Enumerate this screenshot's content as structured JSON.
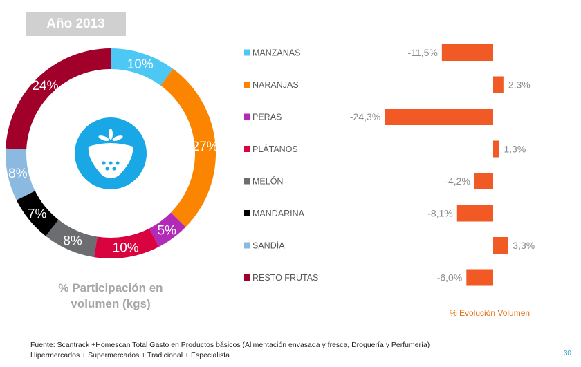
{
  "header": {
    "year_label": "Año 2013"
  },
  "donut_caption_line1": "% Participación en",
  "donut_caption_line2": "volumen (kgs)",
  "bars_caption": "% Evolución  Volumen",
  "source_line1": "Fuente: Scantrack +Homescan Total Gasto en Productos básicos  (Alimentación envasada y fresca, Droguería  y Perfumería)",
  "source_line2": "Hipermercados + Supermercados + Tradicional + Especialista",
  "page_number": "30",
  "center_icon": "strawberry-icon",
  "colors": {
    "bar": "#f15a24",
    "icon_bg": "#1aa7e6"
  },
  "chart_data": [
    {
      "type": "pie",
      "subtype": "donut",
      "title": "% Participación en volumen (kgs)",
      "categories": [
        "MANZANAS",
        "NARANJAS",
        "PERAS",
        "PLÁTANOS",
        "MELÓN",
        "MANDARINA",
        "SANDÍA",
        "RESTO FRUTAS"
      ],
      "values": [
        10,
        27,
        5,
        10,
        8,
        7,
        8,
        24
      ],
      "labels": [
        "10%",
        "27%",
        "5%",
        "10%",
        "8%",
        "7%",
        "8%",
        "24%"
      ],
      "colors": [
        "#4dc8f5",
        "#fb8500",
        "#b12ab8",
        "#d9043f",
        "#6c6d70",
        "#000000",
        "#8cb9e0",
        "#a1002b"
      ]
    },
    {
      "type": "bar",
      "orientation": "horizontal",
      "title": "% Evolución  Volumen",
      "categories": [
        "MANZANAS",
        "NARANJAS",
        "PERAS",
        "PLÁTANOS",
        "MELÓN",
        "MANDARINA",
        "SANDÍA",
        "RESTO FRUTAS"
      ],
      "values": [
        -11.5,
        2.3,
        -24.3,
        1.3,
        -4.2,
        -8.1,
        3.3,
        -6.0
      ],
      "labels": [
        "-11,5%",
        "2,3%",
        "-24,3%",
        "1,3%",
        "-4,2%",
        "-8,1%",
        "3,3%",
        "-6,0%"
      ],
      "legend_colors": [
        "#4dc8f5",
        "#fb8500",
        "#b12ab8",
        "#d9043f",
        "#6c6d70",
        "#000000",
        "#8cb9e0",
        "#a1002b"
      ],
      "bar_color": "#f15a24",
      "grid": false
    }
  ]
}
